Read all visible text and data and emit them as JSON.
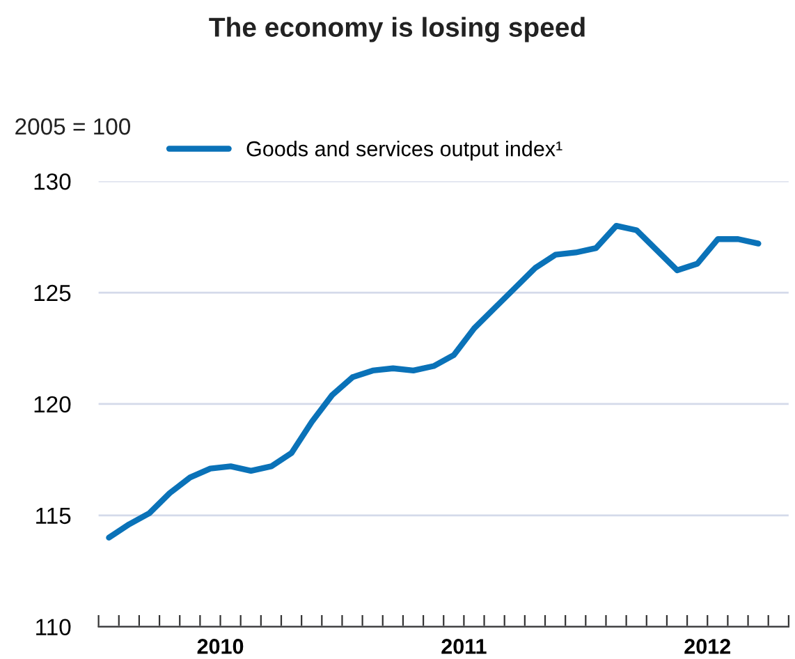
{
  "chart_data": {
    "type": "line",
    "title": "The economy is losing speed",
    "ylabel": "2005 = 100",
    "x": [
      "2010-01",
      "2010-02",
      "2010-03",
      "2010-04",
      "2010-05",
      "2010-06",
      "2010-07",
      "2010-08",
      "2010-09",
      "2010-10",
      "2010-11",
      "2010-12",
      "2011-01",
      "2011-02",
      "2011-03",
      "2011-04",
      "2011-05",
      "2011-06",
      "2011-07",
      "2011-08",
      "2011-09",
      "2011-10",
      "2011-11",
      "2011-12",
      "2012-01",
      "2012-02",
      "2012-03",
      "2012-04",
      "2012-05",
      "2012-06",
      "2012-07",
      "2012-08",
      "2012-09"
    ],
    "series": [
      {
        "name": "Goods and services output index¹",
        "color": "#0a72b8",
        "values": [
          114.0,
          114.6,
          115.1,
          116.0,
          116.7,
          117.1,
          117.2,
          117.0,
          117.2,
          117.8,
          119.2,
          120.4,
          121.2,
          121.5,
          121.6,
          121.5,
          121.7,
          122.2,
          123.4,
          124.3,
          125.2,
          126.1,
          126.7,
          126.8,
          127.0,
          128.0,
          127.8,
          126.9,
          126.0,
          126.3,
          127.4,
          127.4,
          127.2
        ]
      }
    ],
    "xlim": [
      "2009-12-16",
      "2012-10-16"
    ],
    "xticks": [
      {
        "value": "2009-12-16",
        "label": null
      },
      {
        "value": "2010-01-16",
        "label": null
      },
      {
        "value": "2010-02-16",
        "label": null
      },
      {
        "value": "2010-03-16",
        "label": null
      },
      {
        "value": "2010-04-16",
        "label": null
      },
      {
        "value": "2010-05-16",
        "label": null
      },
      {
        "value": "2010-06-16",
        "label": "2010"
      },
      {
        "value": "2010-07-16",
        "label": null
      },
      {
        "value": "2010-08-16",
        "label": null
      },
      {
        "value": "2010-09-16",
        "label": null
      },
      {
        "value": "2010-10-16",
        "label": null
      },
      {
        "value": "2010-11-16",
        "label": null
      },
      {
        "value": "2010-12-16",
        "label": null
      },
      {
        "value": "2011-01-16",
        "label": null
      },
      {
        "value": "2011-02-16",
        "label": null
      },
      {
        "value": "2011-03-16",
        "label": null
      },
      {
        "value": "2011-04-16",
        "label": null
      },
      {
        "value": "2011-05-16",
        "label": null
      },
      {
        "value": "2011-06-16",
        "label": "2011"
      },
      {
        "value": "2011-07-16",
        "label": null
      },
      {
        "value": "2011-08-16",
        "label": null
      },
      {
        "value": "2011-09-16",
        "label": null
      },
      {
        "value": "2011-10-16",
        "label": null
      },
      {
        "value": "2011-11-16",
        "label": null
      },
      {
        "value": "2011-12-16",
        "label": null
      },
      {
        "value": "2012-01-16",
        "label": null
      },
      {
        "value": "2012-02-16",
        "label": null
      },
      {
        "value": "2012-03-16",
        "label": null
      },
      {
        "value": "2012-04-16",
        "label": null
      },
      {
        "value": "2012-05-16",
        "label": null
      },
      {
        "value": "2012-06-16",
        "label": "2012"
      },
      {
        "value": "2012-07-16",
        "label": null
      },
      {
        "value": "2012-08-16",
        "label": null
      },
      {
        "value": "2012-09-16",
        "label": null
      },
      {
        "value": "2012-10-16",
        "label": null
      }
    ],
    "ylim": [
      110,
      130
    ],
    "yticks": [
      110,
      115,
      120,
      125,
      130
    ],
    "grid": "y",
    "legend": "top left",
    "marker": "none",
    "line_style": "solid"
  }
}
